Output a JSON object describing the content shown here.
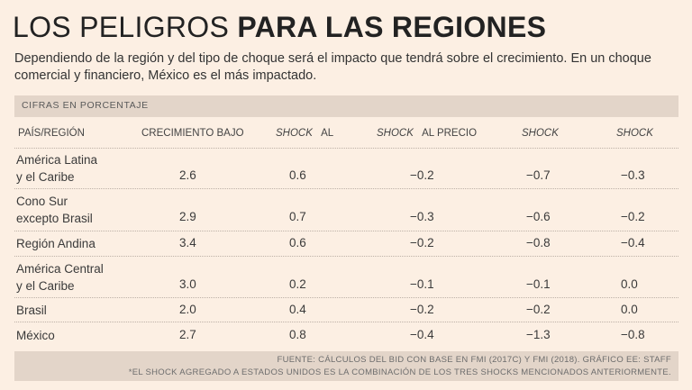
{
  "title": {
    "light": "LOS PELIGROS",
    "bold": "PARA LAS REGIONES"
  },
  "subtitle": "Dependiendo de la región y del tipo de choque será el impacto que tendrá sobre el crecimiento. En un choque comercial y financiero, México es el más impactado.",
  "band_label": "CIFRAS EN PORCENTAJE",
  "headers": {
    "region": "PAÍS/REGIÓN",
    "growth": "CRECIMIENTO BAJO",
    "c2_italic": "SHOCK",
    "c2_rest": "AL",
    "c3_italic": "SHOCK",
    "c3_rest": "AL PRECIO",
    "c4_italic": "SHOCK",
    "c5_italic": "SHOCK"
  },
  "rows": [
    {
      "line1": "América Latina",
      "line2": "y el Caribe",
      "values": [
        "2.6",
        "0.6",
        "−0.2",
        "−0.7",
        "−0.3"
      ]
    },
    {
      "line1": "Cono Sur",
      "line2": "excepto Brasil",
      "values": [
        "2.9",
        "0.7",
        "−0.3",
        "−0.6",
        "−0.2"
      ]
    },
    {
      "line1": "Región Andina",
      "line2": "",
      "values": [
        "3.4",
        "0.6",
        "−0.2",
        "−0.8",
        "−0.4"
      ]
    },
    {
      "line1": "América Central",
      "line2": "y el Caribe",
      "values": [
        "3.0",
        "0.2",
        "−0.1",
        "−0.1",
        "0.0"
      ]
    },
    {
      "line1": "Brasil",
      "line2": "",
      "values": [
        "2.0",
        "0.4",
        "−0.2",
        "−0.2",
        "0.0"
      ]
    },
    {
      "line1": "México",
      "line2": "",
      "values": [
        "2.7",
        "0.8",
        "−0.4",
        "−1.3",
        "−0.8"
      ]
    }
  ],
  "source_line1": "FUENTE: CÁLCULOS DEL BID CON BASE EN FMI (2017C) Y FMI (2018). GRÁFICO EE: STAFF",
  "source_line2": "*EL SHOCK AGREGADO A ESTADOS UNIDOS ES LA COMBINACIÓN DE LOS TRES SHOCKS MENCIONADOS ANTERIORMENTE."
}
